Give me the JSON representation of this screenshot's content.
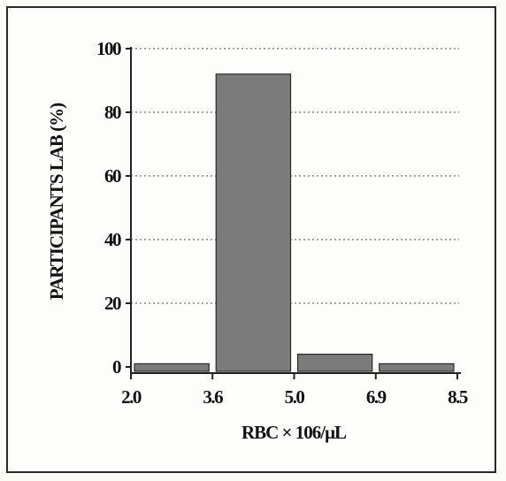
{
  "chart_data": {
    "type": "bar",
    "title": "",
    "xlabel": "RBC × 106/μL",
    "ylabel": "PARTICIPANTS LAB  (%)",
    "bin_edges": [
      "2.0",
      "3.6",
      "5.0",
      "6.9",
      "8.5"
    ],
    "bins": [
      {
        "from": 2.0,
        "to": 3.6,
        "value": 1
      },
      {
        "from": 3.6,
        "to": 5.0,
        "value": 92
      },
      {
        "from": 5.0,
        "to": 6.9,
        "value": 4
      },
      {
        "from": 6.9,
        "to": 8.5,
        "value": 1
      }
    ],
    "yticks": [
      "0",
      "20",
      "40",
      "60",
      "80",
      "100"
    ],
    "ylim": [
      0,
      100
    ],
    "grid": "horizontal dotted",
    "colors": {
      "bar": "#7b7b7b",
      "bar_edge": "#2a2a2a",
      "grid": "#555555",
      "background": "#fdfdfb"
    }
  }
}
